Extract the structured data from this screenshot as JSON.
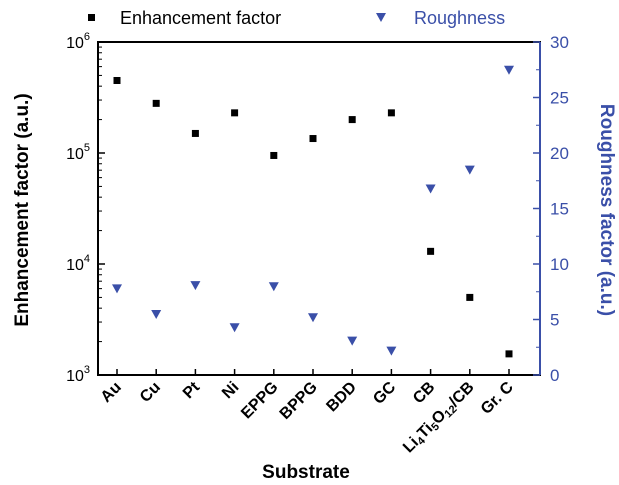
{
  "chart_data": {
    "type": "scatter",
    "xlabel": "Substrate",
    "categories": [
      "Au",
      "Cu",
      "Pt",
      "Ni",
      "EPPG",
      "BPPG",
      "BDD",
      "GC",
      "CB",
      "Li4Ti5O12/CB",
      "Gr. C"
    ],
    "left_axis": {
      "label": "Enhancement factor (a.u.)",
      "scale": "log",
      "ylim": [
        1000,
        1000000
      ],
      "ticks": [
        {
          "base": "10",
          "exp": "3"
        },
        {
          "base": "10",
          "exp": "4"
        },
        {
          "base": "10",
          "exp": "5"
        },
        {
          "base": "10",
          "exp": "6"
        }
      ]
    },
    "right_axis": {
      "label": "Roughness factor (a.u.)",
      "scale": "linear",
      "ylim": [
        0,
        30
      ],
      "ticks": [
        "0",
        "5",
        "10",
        "15",
        "20",
        "25",
        "30"
      ]
    },
    "series": [
      {
        "name": "Enhancement factor",
        "axis": "left",
        "marker": "square",
        "color": "#000000",
        "values": [
          450000,
          280000,
          150000,
          230000,
          95000,
          135000,
          200000,
          230000,
          13000,
          5000,
          1550
        ]
      },
      {
        "name": "Roughness",
        "axis": "right",
        "marker": "triangle-down",
        "color": "#3a4fa8",
        "values": [
          7.8,
          5.5,
          8.1,
          4.3,
          8.0,
          5.2,
          3.1,
          2.2,
          16.8,
          18.5,
          27.5
        ]
      }
    ],
    "legend_position": "top",
    "grid": false
  },
  "colors": {
    "left_axis": "#000000",
    "right_axis": "#3a4fa8"
  }
}
